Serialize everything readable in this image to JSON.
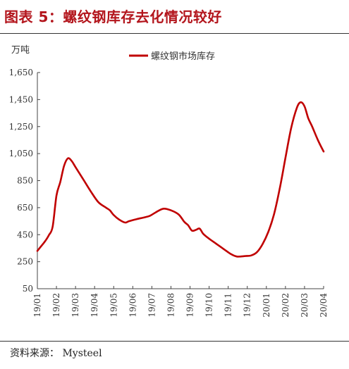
{
  "figure": {
    "title": "图表 5：螺纹钢库存去化情况较好",
    "source": "资料来源：  Mysteel"
  },
  "chart_data": {
    "type": "line",
    "ylabel": "万吨",
    "ylim": [
      50,
      1650
    ],
    "yticks": [
      "1,650",
      "1,450",
      "1,250",
      "1,050",
      "850",
      "650",
      "450",
      "250",
      "50"
    ],
    "ytick_values": [
      1650,
      1450,
      1250,
      1050,
      850,
      650,
      450,
      250,
      50
    ],
    "categories": [
      "19/01",
      "19/02",
      "19/03",
      "19/04",
      "19/05",
      "19/06",
      "19/07",
      "19/08",
      "19/09",
      "19/10",
      "19/11",
      "19/12",
      "20/01",
      "20/02",
      "20/03",
      "20/04"
    ],
    "legend_position": "top-center",
    "grid": false,
    "series": [
      {
        "name": "螺纹钢市场库存",
        "color": "#c00000",
        "values": [
          [
            0.0,
            330
          ],
          [
            0.2,
            365
          ],
          [
            0.4,
            400
          ],
          [
            0.6,
            445
          ],
          [
            0.8,
            510
          ],
          [
            1.0,
            740
          ],
          [
            1.2,
            840
          ],
          [
            1.4,
            960
          ],
          [
            1.6,
            1015
          ],
          [
            1.8,
            995
          ],
          [
            2.0,
            950
          ],
          [
            2.4,
            860
          ],
          [
            2.8,
            770
          ],
          [
            3.2,
            690
          ],
          [
            3.6,
            650
          ],
          [
            3.8,
            630
          ],
          [
            4.0,
            595
          ],
          [
            4.3,
            560
          ],
          [
            4.6,
            540
          ],
          [
            4.8,
            550
          ],
          [
            5.2,
            565
          ],
          [
            5.6,
            578
          ],
          [
            5.9,
            590
          ],
          [
            6.2,
            615
          ],
          [
            6.6,
            642
          ],
          [
            7.0,
            630
          ],
          [
            7.4,
            600
          ],
          [
            7.7,
            545
          ],
          [
            7.9,
            520
          ],
          [
            8.1,
            480
          ],
          [
            8.3,
            485
          ],
          [
            8.5,
            495
          ],
          [
            8.7,
            455
          ],
          [
            9.0,
            420
          ],
          [
            9.4,
            380
          ],
          [
            9.8,
            340
          ],
          [
            10.1,
            310
          ],
          [
            10.4,
            290
          ],
          [
            10.6,
            288
          ],
          [
            10.9,
            292
          ],
          [
            11.2,
            296
          ],
          [
            11.5,
            320
          ],
          [
            11.8,
            380
          ],
          [
            12.1,
            470
          ],
          [
            12.4,
            600
          ],
          [
            12.7,
            790
          ],
          [
            13.0,
            1020
          ],
          [
            13.3,
            1240
          ],
          [
            13.6,
            1390
          ],
          [
            13.8,
            1430
          ],
          [
            14.0,
            1400
          ],
          [
            14.2,
            1310
          ],
          [
            14.4,
            1250
          ],
          [
            14.7,
            1150
          ],
          [
            15.0,
            1065
          ]
        ]
      }
    ]
  }
}
